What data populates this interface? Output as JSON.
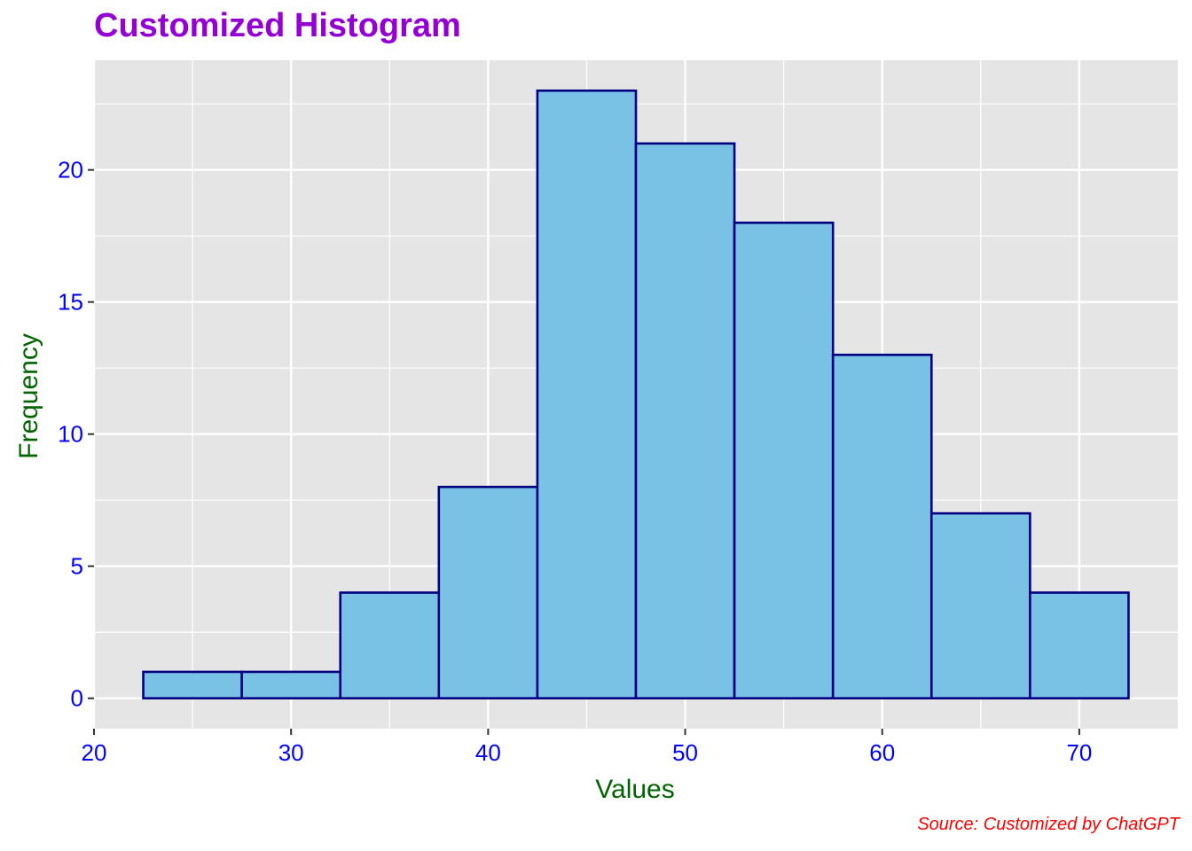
{
  "chart_data": {
    "type": "bar",
    "histogram": true,
    "title": "Customized Histogram",
    "xlabel": "Values",
    "ylabel": "Frequency",
    "caption": "Source: Customized by ChatGPT",
    "bin_width": 5,
    "bins": [
      {
        "from": 22.5,
        "to": 27.5,
        "count": 1
      },
      {
        "from": 27.5,
        "to": 32.5,
        "count": 1
      },
      {
        "from": 32.5,
        "to": 37.5,
        "count": 4
      },
      {
        "from": 37.5,
        "to": 42.5,
        "count": 8
      },
      {
        "from": 42.5,
        "to": 47.5,
        "count": 23
      },
      {
        "from": 47.5,
        "to": 52.5,
        "count": 21
      },
      {
        "from": 52.5,
        "to": 57.5,
        "count": 18
      },
      {
        "from": 57.5,
        "to": 62.5,
        "count": 13
      },
      {
        "from": 62.5,
        "to": 67.5,
        "count": 7
      },
      {
        "from": 67.5,
        "to": 72.5,
        "count": 4
      }
    ],
    "xlim": [
      20,
      75
    ],
    "ylim": [
      -1.15,
      24.15
    ],
    "x_ticks": [
      20,
      30,
      40,
      50,
      60,
      70
    ],
    "x_minor": [
      25,
      35,
      45,
      55,
      65
    ],
    "y_ticks": [
      0,
      5,
      10,
      15,
      20
    ],
    "y_minor": [
      2.5,
      7.5,
      12.5,
      17.5,
      22.5
    ],
    "grid": true,
    "colors": {
      "bar_fill": "#7AC2E5",
      "bar_outline": "#000080",
      "panel_background": "#E5E5E5",
      "gridline": "#FFFFFF",
      "title": "#9400D3",
      "axis_label": "#006400",
      "tick_label": "#0000FF",
      "caption": "#FF0000"
    }
  }
}
